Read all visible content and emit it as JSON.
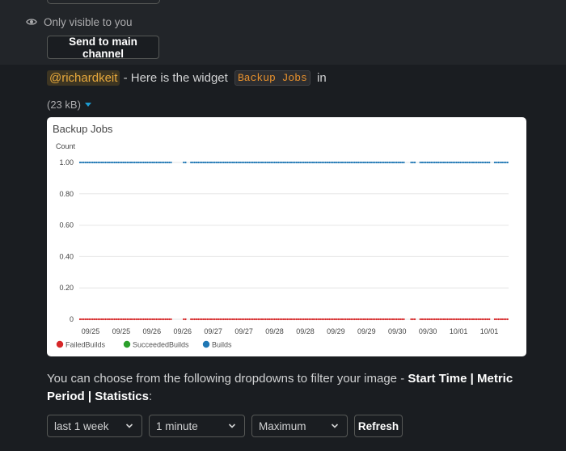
{
  "message": {
    "visibility_note": "Only visible to you",
    "send_button": "Send to main channel",
    "mention": "@richardkeit",
    "text_before_code": " - Here is the widget ",
    "widget_name": "Backup Jobs",
    "text_after_code": " in",
    "file_size": "(23 kB)"
  },
  "chart_data": {
    "type": "scatter",
    "title": "Backup Jobs",
    "ylabel": "Count",
    "ylim": [
      0,
      1
    ],
    "y_ticks": [
      "0",
      "0.20",
      "0.40",
      "0.60",
      "0.80",
      "1.00"
    ],
    "x_tick_labels": [
      "09/25",
      "09/25",
      "09/26",
      "09/26",
      "09/27",
      "09/27",
      "09/28",
      "09/28",
      "09/29",
      "09/29",
      "09/30",
      "09/30",
      "10/01",
      "10/01"
    ],
    "legend_position": "bottom-left",
    "grid": true,
    "series": [
      {
        "name": "FailedBuilds",
        "color": "#d62728",
        "value": 0
      },
      {
        "name": "SucceededBuilds",
        "color": "#2ca02c",
        "value": 1
      },
      {
        "name": "Builds",
        "color": "#1f77b4",
        "value": 1
      }
    ]
  },
  "filters": {
    "intro": "You can choose from the following dropdowns to filter your image - ",
    "start_time_label": "Start Time",
    "sep1": " | ",
    "metric_period_label": "Metric Period",
    "sep2": " | ",
    "statistics_label": "Statistics",
    "colon": ":",
    "start_time_value": "last 1 week",
    "metric_period_value": "1 minute",
    "statistics_value": "Maximum",
    "refresh_label": "Refresh"
  }
}
